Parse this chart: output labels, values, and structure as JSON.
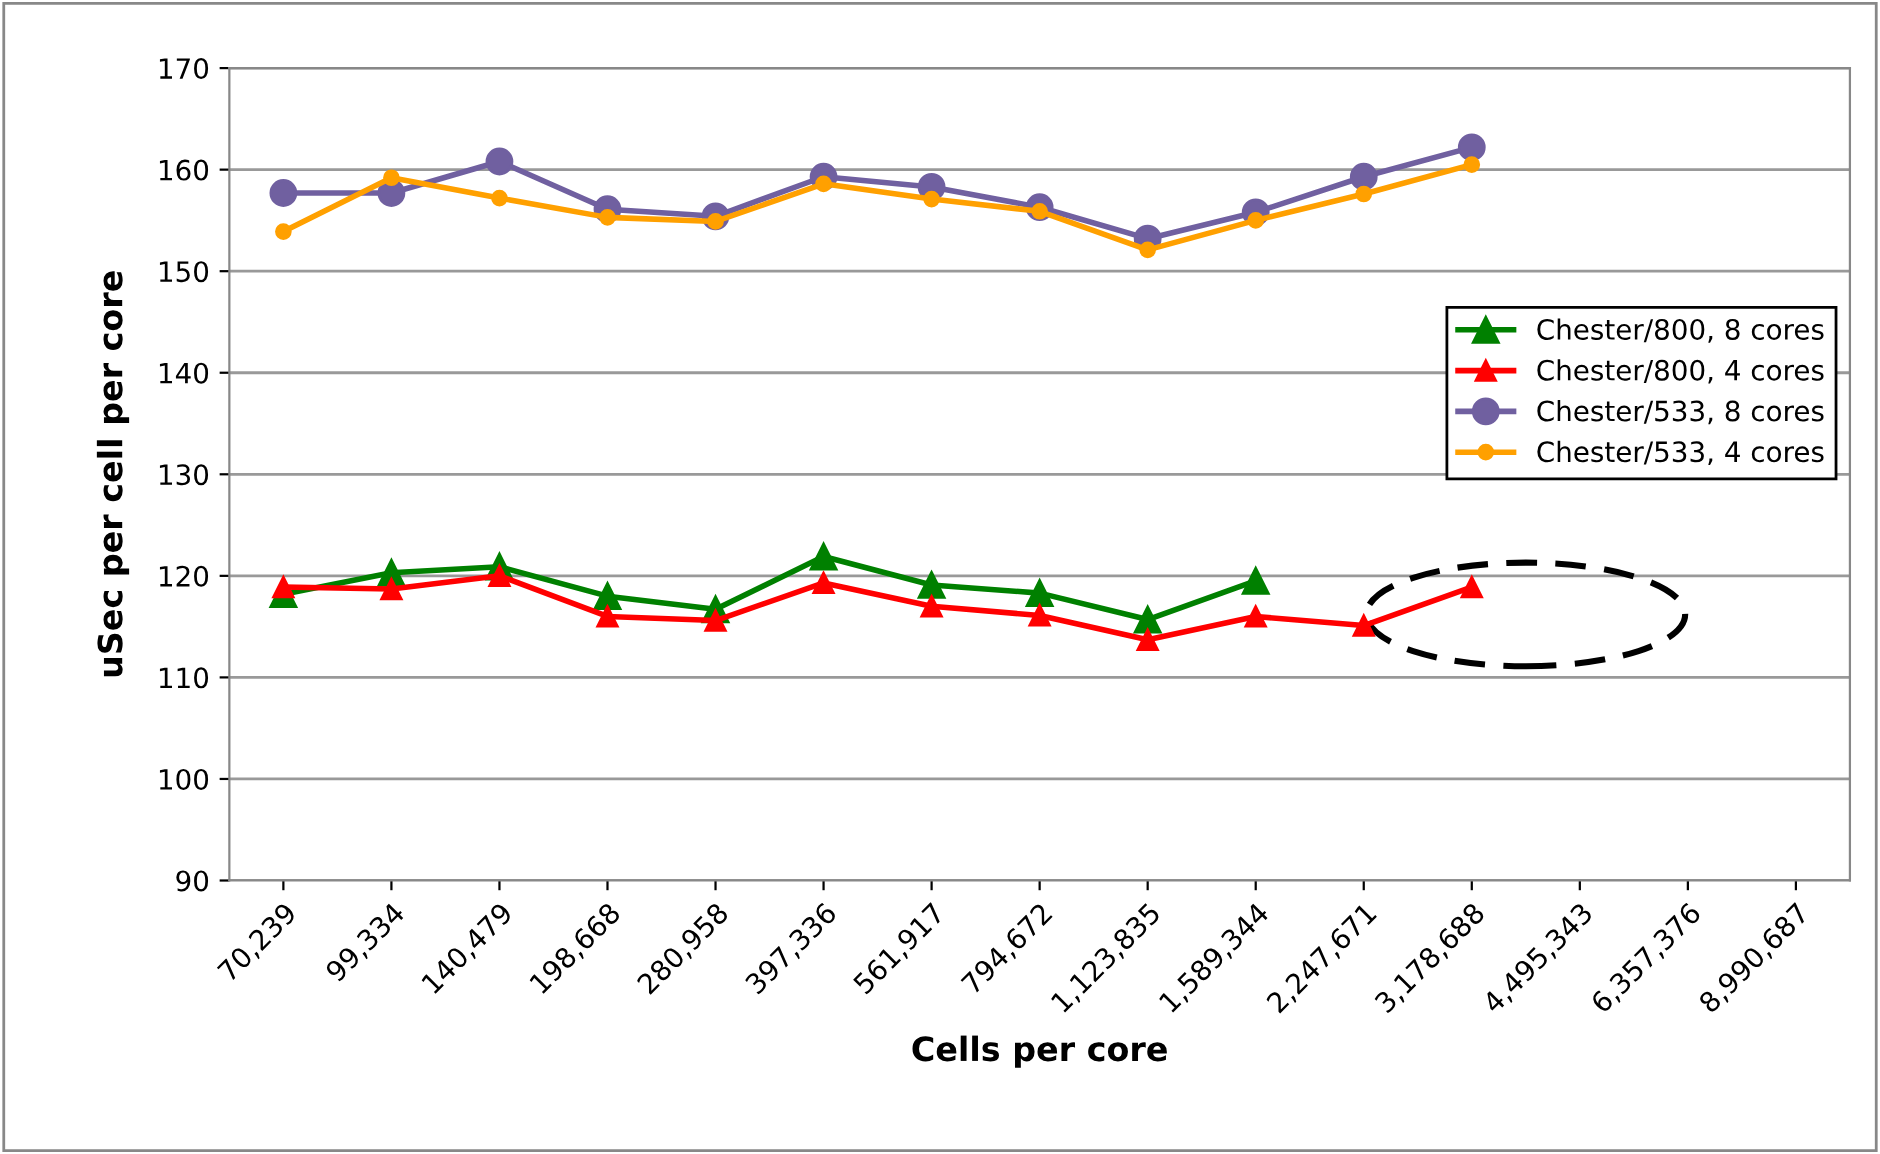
{
  "chart_data": {
    "type": "line",
    "xlabel": "Cells per core",
    "ylabel": "uSec per cell per core",
    "categories": [
      "70,239",
      "99,334",
      "140,479",
      "198,668",
      "280,958",
      "397,336",
      "561,917",
      "794,672",
      "1,123,835",
      "1,589,344",
      "2,247,671",
      "3,178,688",
      "4,495,343",
      "6,357,376",
      "8,990,687"
    ],
    "series": [
      {
        "name": "Chester/800, 8 cores",
        "color": "#008000",
        "marker": "triangle",
        "values": [
          118.2,
          120.3,
          120.9,
          118.0,
          116.7,
          121.9,
          119.1,
          118.3,
          115.7,
          119.5,
          null,
          null,
          null,
          null,
          null
        ]
      },
      {
        "name": "Chester/800, 4 cores",
        "color": "#ff0000",
        "marker": "triangle",
        "values": [
          118.9,
          118.7,
          120.0,
          116.0,
          115.6,
          119.3,
          117.0,
          116.1,
          113.7,
          116.0,
          115.1,
          118.9,
          null,
          null,
          null
        ]
      },
      {
        "name": "Chester/533, 8 cores",
        "color": "#7060a0",
        "marker": "circle",
        "values": [
          157.7,
          157.7,
          160.8,
          156.1,
          155.4,
          159.3,
          158.3,
          156.3,
          153.2,
          155.8,
          159.3,
          162.2,
          null,
          null,
          null
        ]
      },
      {
        "name": "Chester/533, 4 cores",
        "color": "#ffa000",
        "marker": "circle",
        "values": [
          153.9,
          159.2,
          157.2,
          155.3,
          154.9,
          158.6,
          157.1,
          155.9,
          152.1,
          155.0,
          157.6,
          160.5,
          null,
          null,
          null
        ]
      }
    ],
    "ylim": [
      90,
      170
    ],
    "yticks": [
      90,
      100,
      110,
      120,
      130,
      140,
      150,
      160,
      170
    ],
    "grid": "y",
    "legend": "right"
  }
}
